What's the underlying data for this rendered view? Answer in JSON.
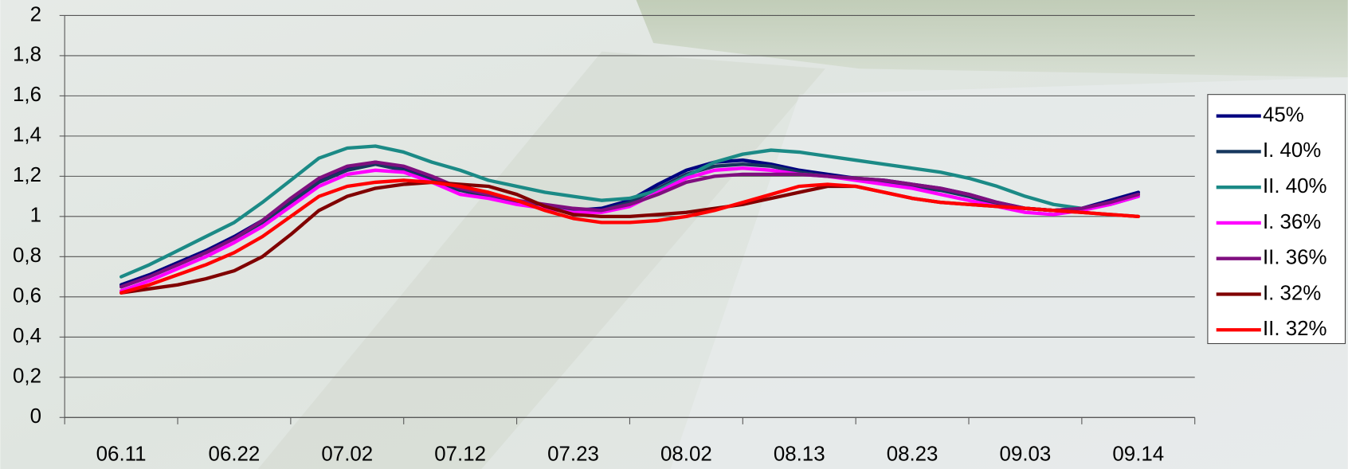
{
  "chart_data": {
    "type": "line",
    "categories": [
      "06.11",
      null,
      null,
      null,
      "06.22",
      null,
      null,
      null,
      "07.02",
      null,
      null,
      null,
      "07.12",
      null,
      null,
      null,
      "07.23",
      null,
      null,
      null,
      "08.02",
      null,
      null,
      null,
      "08.13",
      null,
      null,
      null,
      "08.23",
      null,
      null,
      null,
      "09.03",
      null,
      null,
      null,
      "09.14"
    ],
    "ylim": [
      0,
      2
    ],
    "yticks": [
      0,
      {
        "value": 0.2,
        "label": "0,2"
      },
      {
        "value": 0.4,
        "label": "0,4"
      },
      {
        "value": 0.6,
        "label": "0,6"
      },
      {
        "value": 0.8,
        "label": "0,8"
      },
      1,
      {
        "value": 1.2,
        "label": "1,2"
      },
      {
        "value": 1.4,
        "label": "1,4"
      },
      {
        "value": 1.6,
        "label": "1,6"
      },
      {
        "value": 1.8,
        "label": "1,8"
      },
      2
    ],
    "grid": true,
    "legend": "right",
    "series": [
      {
        "name": "45%",
        "color": "#000080",
        "values": [
          0.66,
          0.71,
          0.77,
          0.83,
          0.9,
          0.98,
          1.08,
          1.18,
          1.24,
          1.27,
          1.24,
          1.19,
          1.14,
          1.11,
          1.08,
          1.05,
          1.03,
          1.04,
          1.08,
          1.16,
          1.23,
          1.27,
          1.28,
          1.26,
          1.23,
          1.21,
          1.19,
          1.18,
          1.16,
          1.14,
          1.11,
          1.07,
          1.04,
          1.03,
          1.04,
          1.08,
          1.12
        ]
      },
      {
        "name": "I. 40%",
        "color": "#17375e",
        "values": [
          0.65,
          0.7,
          0.76,
          0.82,
          0.89,
          0.97,
          1.07,
          1.17,
          1.23,
          1.26,
          1.23,
          1.18,
          1.13,
          1.1,
          1.07,
          1.04,
          1.03,
          1.03,
          1.07,
          1.14,
          1.21,
          1.25,
          1.26,
          1.25,
          1.22,
          1.2,
          1.19,
          1.17,
          1.15,
          1.13,
          1.1,
          1.06,
          1.04,
          1.03,
          1.04,
          1.07,
          1.11
        ]
      },
      {
        "name": "II. 40%",
        "color": "#1b8a86",
        "values": [
          0.7,
          0.76,
          0.83,
          0.9,
          0.97,
          1.07,
          1.18,
          1.29,
          1.34,
          1.35,
          1.32,
          1.27,
          1.23,
          1.18,
          1.15,
          1.12,
          1.1,
          1.08,
          1.09,
          1.13,
          1.2,
          1.27,
          1.31,
          1.33,
          1.32,
          1.3,
          1.28,
          1.26,
          1.24,
          1.22,
          1.19,
          1.15,
          1.1,
          1.06,
          1.04,
          1.06,
          1.1
        ]
      },
      {
        "name": "I. 36%",
        "color": "#ff00ff",
        "values": [
          0.63,
          0.68,
          0.74,
          0.8,
          0.87,
          0.95,
          1.05,
          1.15,
          1.21,
          1.23,
          1.22,
          1.17,
          1.11,
          1.09,
          1.06,
          1.04,
          1.02,
          1.02,
          1.05,
          1.12,
          1.19,
          1.23,
          1.24,
          1.23,
          1.21,
          1.2,
          1.18,
          1.16,
          1.14,
          1.11,
          1.08,
          1.05,
          1.02,
          1.01,
          1.03,
          1.06,
          1.1
        ]
      },
      {
        "name": "II. 36%",
        "color": "#7f0f7f",
        "values": [
          0.65,
          0.7,
          0.76,
          0.82,
          0.89,
          0.98,
          1.09,
          1.19,
          1.25,
          1.27,
          1.25,
          1.2,
          1.14,
          1.11,
          1.08,
          1.06,
          1.04,
          1.03,
          1.06,
          1.11,
          1.17,
          1.2,
          1.21,
          1.21,
          1.21,
          1.2,
          1.19,
          1.18,
          1.16,
          1.14,
          1.11,
          1.07,
          1.04,
          1.03,
          1.04,
          1.07,
          1.11
        ]
      },
      {
        "name": "I. 32%",
        "color": "#800000",
        "values": [
          0.62,
          0.64,
          0.66,
          0.69,
          0.73,
          0.8,
          0.91,
          1.03,
          1.1,
          1.14,
          1.16,
          1.17,
          1.16,
          1.15,
          1.11,
          1.05,
          1.01,
          1.0,
          1.0,
          1.01,
          1.02,
          1.04,
          1.06,
          1.09,
          1.12,
          1.15,
          1.15,
          1.12,
          1.09,
          1.07,
          1.06,
          1.05,
          1.04,
          1.03,
          1.02,
          1.01,
          1.0
        ]
      },
      {
        "name": "II. 32%",
        "color": "#ff0000",
        "values": [
          0.62,
          0.66,
          0.71,
          0.76,
          0.82,
          0.9,
          1.0,
          1.1,
          1.15,
          1.17,
          1.18,
          1.17,
          1.15,
          1.12,
          1.08,
          1.03,
          0.99,
          0.97,
          0.97,
          0.98,
          1.0,
          1.03,
          1.07,
          1.11,
          1.15,
          1.16,
          1.15,
          1.12,
          1.09,
          1.07,
          1.06,
          1.05,
          1.04,
          1.03,
          1.02,
          1.01,
          1.0
        ]
      }
    ]
  }
}
